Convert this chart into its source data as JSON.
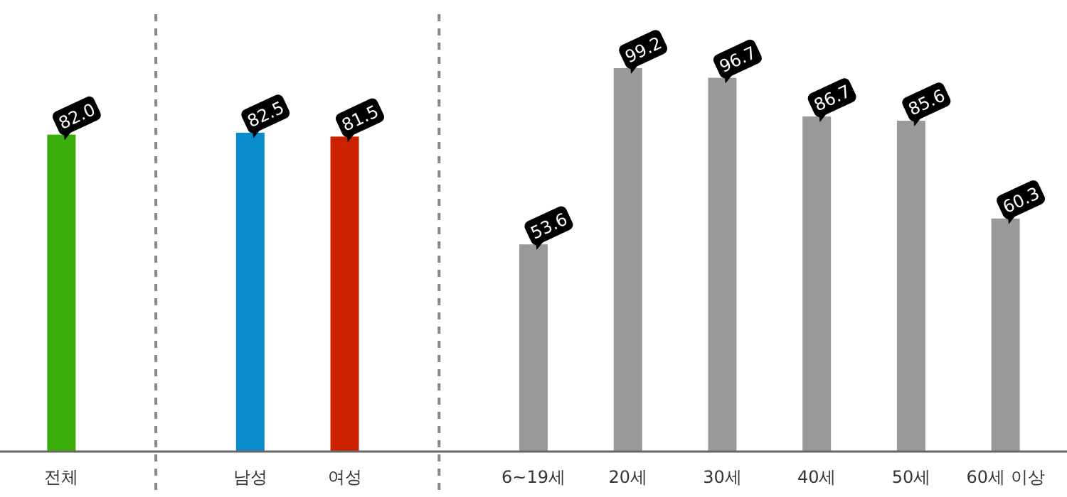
{
  "chart_data": {
    "type": "bar",
    "categories": [
      "전체",
      null,
      "남성",
      "여성",
      null,
      "6~19세",
      "20세",
      "30세",
      "40세",
      "50세",
      "60세 이상"
    ],
    "values": [
      82.0,
      null,
      82.5,
      81.5,
      null,
      53.6,
      99.2,
      96.7,
      86.7,
      85.6,
      60.3
    ],
    "value_labels": [
      "82.0",
      null,
      "82.5",
      "81.5",
      null,
      "53.6",
      "99.2",
      "96.7",
      "86.7",
      "85.6",
      "60.3"
    ],
    "colors": [
      "#3aad0a",
      null,
      "#0a8bcc",
      "#cc2200",
      null,
      "#999999",
      "#999999",
      "#999999",
      "#999999",
      "#999999",
      "#999999"
    ]
  }
}
